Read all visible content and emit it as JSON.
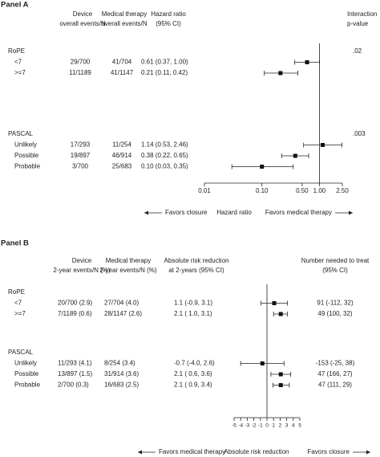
{
  "chart_data": [
    {
      "type": "forest",
      "title": "Panel A",
      "columns": [
        {
          "key": "device",
          "lines": [
            "Device",
            "overall events/N"
          ]
        },
        {
          "key": "medical",
          "lines": [
            "Medical therapy",
            "overall events/N"
          ]
        },
        {
          "key": "estimate",
          "lines": [
            "Hazard ratio",
            "(95% CI)"
          ]
        },
        {
          "key": "extra",
          "lines": [
            "Interaction",
            "p-value"
          ]
        }
      ],
      "groups": [
        {
          "name": "RoPE",
          "p_value": ".02",
          "categories": [
            "<7",
            ">=7"
          ],
          "device": [
            "29/700",
            "11/1189"
          ],
          "medical": [
            "41/704",
            "41/1147"
          ],
          "values": [
            0.61,
            0.21
          ],
          "lower": [
            0.37,
            0.11
          ],
          "upper": [
            1.0,
            0.42
          ],
          "value_labels": [
            "0.61 (0.37, 1.00)",
            "0.21 (0.11, 0.42)"
          ]
        },
        {
          "name": "PASCAL",
          "p_value": ".003",
          "categories": [
            "Unlikely",
            "Possible",
            "Probable"
          ],
          "device": [
            "17/293",
            "19/897",
            "3/700"
          ],
          "medical": [
            "11/254",
            "46/914",
            "25/683"
          ],
          "values": [
            1.14,
            0.38,
            0.1
          ],
          "lower": [
            0.53,
            0.22,
            0.03
          ],
          "upper": [
            2.46,
            0.65,
            0.35
          ],
          "value_labels": [
            "1.14 (0.53, 2.46)",
            "0.38 (0.22, 0.65)",
            "0.10 (0.03, 0.35)"
          ]
        }
      ],
      "log_x": true,
      "reference": 1,
      "xlim": [
        0.01,
        2.5
      ],
      "xticks": [
        {
          "value": 0.01,
          "label": "0.01"
        },
        {
          "value": 0.1,
          "label": "0.10"
        },
        {
          "value": 0.5,
          "label": "0.50"
        },
        {
          "value": 1,
          "label": "1.00"
        },
        {
          "value": 2.5,
          "label": "2.50"
        }
      ],
      "footer": {
        "left": "Favors closure",
        "center": "Hazard ratio",
        "right": "Favors medical therapy"
      }
    },
    {
      "type": "forest",
      "title": "Panel B",
      "columns": [
        {
          "key": "device",
          "lines": [
            "Device",
            "2-year events/N (%)"
          ]
        },
        {
          "key": "medical",
          "lines": [
            "Medical therapy",
            "2-year events/N (%)"
          ]
        },
        {
          "key": "estimate",
          "lines": [
            "Absolute risk reduction",
            "at 2-years (95% CI)"
          ]
        },
        {
          "key": "extra",
          "lines": [
            "Number needed to treat",
            "(95% CI)"
          ]
        }
      ],
      "groups": [
        {
          "name": "RoPE",
          "categories": [
            "<7",
            ">=7"
          ],
          "device": [
            "20/700 (2.9)",
            "7/1189 (0.6)"
          ],
          "medical": [
            "27/704 (4.0)",
            "28/1147 (2.6)"
          ],
          "values": [
            1.1,
            2.1
          ],
          "lower": [
            -0.9,
            1.0
          ],
          "upper": [
            3.1,
            3.1
          ],
          "value_labels": [
            "1.1 (-0.9, 3.1)",
            "2.1 ( 1.0, 3.1)"
          ],
          "nnt": [
            "91 (-112, 32)",
            "49 (100, 32)"
          ]
        },
        {
          "name": "PASCAL",
          "categories": [
            "Unlikely",
            "Possible",
            "Probable"
          ],
          "device": [
            "11/293 (4.1)",
            "13/897 (1.5)",
            "2/700 (0.3)"
          ],
          "medical": [
            "8/254 (3.4)",
            "31/914 (3.6)",
            "16/683 (2.5)"
          ],
          "values": [
            -0.7,
            2.1,
            2.1
          ],
          "lower": [
            -4.0,
            0.6,
            0.9
          ],
          "upper": [
            2.6,
            3.6,
            3.4
          ],
          "value_labels": [
            "-0.7 (-4.0, 2.6)",
            "2.1 ( 0.6, 3.6)",
            "2.1 ( 0.9, 3.4)"
          ],
          "nnt": [
            "-153 (-25, 38)",
            "47 (166, 27)",
            "47 (111, 29)"
          ]
        }
      ],
      "log_x": false,
      "reference": 0,
      "xlim": [
        -5,
        5
      ],
      "xticks": [
        -5,
        -4,
        -3,
        -2,
        -1,
        0,
        1,
        2,
        3,
        4,
        5
      ],
      "footer": {
        "left": "Favors medical therapy",
        "center": "Absolute risk reduction",
        "right": "Favors closure"
      }
    }
  ]
}
